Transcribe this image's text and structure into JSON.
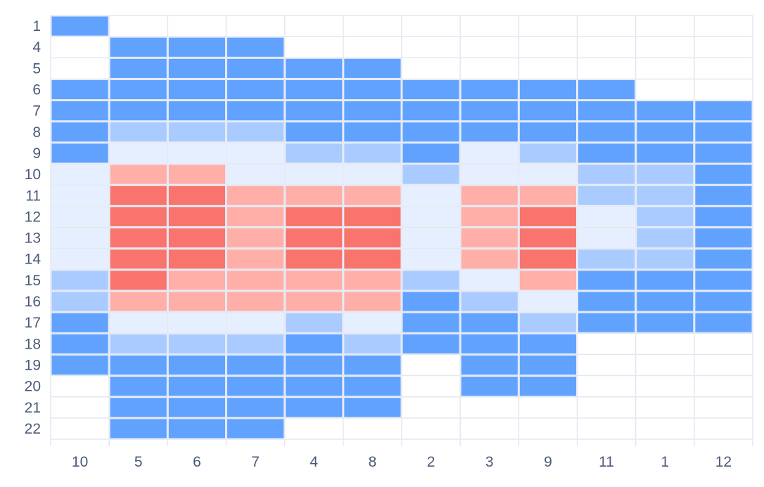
{
  "chart_data": {
    "type": "heatmap",
    "title": "",
    "xlabel": "",
    "ylabel": "",
    "x_categories": [
      "10",
      "5",
      "6",
      "7",
      "4",
      "8",
      "2",
      "3",
      "9",
      "11",
      "1",
      "12"
    ],
    "y_categories": [
      "1",
      "4",
      "5",
      "6",
      "7",
      "8",
      "9",
      "10",
      "11",
      "12",
      "13",
      "14",
      "15",
      "16",
      "17",
      "18",
      "19",
      "20",
      "21",
      "22"
    ],
    "level_colors": {
      "1": "#61a2ff",
      "2": "#aacbff",
      "3": "#e6efff",
      "4": "#ffaea8",
      "5": "#f8746d"
    },
    "grid_color": "#e3e7f0",
    "values": [
      [
        1,
        null,
        null,
        null,
        null,
        null,
        null,
        null,
        null,
        null,
        null,
        null
      ],
      [
        null,
        1,
        1,
        1,
        null,
        null,
        null,
        null,
        null,
        null,
        null,
        null
      ],
      [
        null,
        1,
        1,
        1,
        1,
        1,
        null,
        null,
        null,
        null,
        null,
        null
      ],
      [
        1,
        1,
        1,
        1,
        1,
        1,
        1,
        1,
        1,
        1,
        null,
        null
      ],
      [
        1,
        1,
        1,
        1,
        1,
        1,
        1,
        1,
        1,
        1,
        1,
        1
      ],
      [
        1,
        2,
        2,
        2,
        1,
        1,
        1,
        1,
        1,
        1,
        1,
        1
      ],
      [
        1,
        3,
        3,
        3,
        2,
        2,
        1,
        3,
        2,
        1,
        1,
        1
      ],
      [
        3,
        4,
        4,
        3,
        3,
        3,
        2,
        3,
        3,
        2,
        2,
        1
      ],
      [
        3,
        5,
        5,
        4,
        4,
        4,
        3,
        4,
        4,
        2,
        2,
        1
      ],
      [
        3,
        5,
        5,
        4,
        5,
        5,
        3,
        4,
        5,
        3,
        2,
        1
      ],
      [
        3,
        5,
        5,
        4,
        5,
        5,
        3,
        4,
        5,
        3,
        2,
        1
      ],
      [
        3,
        5,
        5,
        4,
        5,
        5,
        3,
        4,
        5,
        2,
        2,
        1
      ],
      [
        2,
        5,
        4,
        4,
        4,
        4,
        2,
        3,
        4,
        1,
        1,
        1
      ],
      [
        2,
        4,
        4,
        4,
        4,
        4,
        1,
        2,
        3,
        1,
        1,
        1
      ],
      [
        1,
        3,
        3,
        3,
        2,
        3,
        1,
        1,
        2,
        1,
        1,
        1
      ],
      [
        1,
        2,
        2,
        2,
        1,
        2,
        1,
        1,
        1,
        null,
        null,
        null
      ],
      [
        1,
        1,
        1,
        1,
        1,
        1,
        null,
        1,
        1,
        null,
        null,
        null
      ],
      [
        null,
        1,
        1,
        1,
        1,
        1,
        null,
        1,
        1,
        null,
        null,
        null
      ],
      [
        null,
        1,
        1,
        1,
        1,
        1,
        null,
        null,
        null,
        null,
        null,
        null
      ],
      [
        null,
        1,
        1,
        1,
        null,
        null,
        null,
        null,
        null,
        null,
        null,
        null
      ]
    ],
    "legend": "none",
    "grid": true
  }
}
